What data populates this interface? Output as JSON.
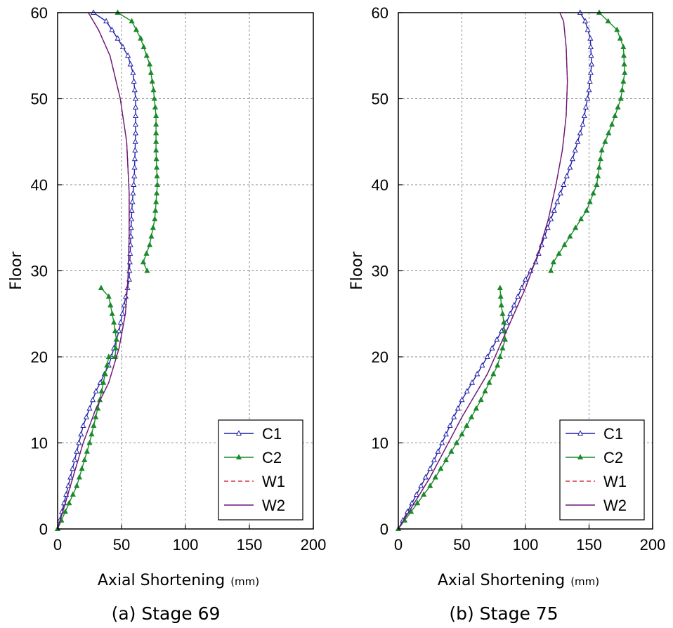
{
  "chart_data": [
    {
      "type": "line",
      "caption": "(a) Stage 69",
      "xlabel": "Axial Shortening",
      "xunit": "(mm)",
      "ylabel": "Floor",
      "xlim": [
        0,
        200
      ],
      "ylim": [
        0,
        60
      ],
      "xticks": [
        0,
        50,
        100,
        150,
        200
      ],
      "yticks": [
        0,
        10,
        20,
        30,
        40,
        50,
        60
      ],
      "grid": true,
      "legend": "bottom-right",
      "series": [
        {
          "name": "C1",
          "color": "#1f1fa8",
          "marker": "open-triangle",
          "dash": "",
          "x": [
            0,
            10,
            20,
            30,
            40,
            48,
            52,
            56,
            57,
            58,
            60,
            61,
            61,
            59,
            55,
            47,
            38,
            28
          ],
          "y": [
            0,
            6,
            12,
            16,
            19,
            23,
            26,
            29,
            33,
            37,
            41,
            46,
            50,
            53,
            55,
            57,
            59,
            60
          ]
        },
        {
          "name": "C2",
          "color": "#1a8a2a",
          "marker": "filled-triangle",
          "dash": "",
          "x": [
            0,
            15,
            25,
            33,
            40,
            45,
            46,
            44,
            40,
            34
          ],
          "y": [
            0,
            5,
            10,
            15,
            20,
            20,
            22,
            24,
            27,
            28
          ]
        },
        {
          "name": "C2",
          "color": "#1a8a2a",
          "marker": "filled-triangle",
          "dash": "",
          "x": [
            70,
            67,
            72,
            76,
            78,
            77,
            77,
            75,
            72,
            65,
            58,
            47
          ],
          "y": [
            30,
            31,
            33,
            36,
            40,
            44,
            48,
            51,
            54,
            57,
            59,
            60
          ]
        },
        {
          "name": "W1",
          "color": "#d9334a",
          "marker": "none",
          "dash": "6 4",
          "x": [
            0,
            10,
            20,
            30,
            40,
            48,
            53,
            55,
            56,
            56,
            54,
            49,
            41,
            32,
            24
          ],
          "y": [
            0,
            5,
            10,
            14,
            17,
            21,
            25,
            29,
            34,
            39,
            45,
            50,
            55,
            58,
            60
          ]
        },
        {
          "name": "W2",
          "color": "#6a1a7a",
          "marker": "none",
          "dash": "",
          "x": [
            0,
            10,
            20,
            30,
            40,
            48,
            53,
            55,
            56,
            56,
            54,
            49,
            41,
            32,
            24
          ],
          "y": [
            0,
            5,
            10,
            14,
            17,
            21,
            25,
            29,
            34,
            39,
            45,
            50,
            55,
            58,
            60
          ]
        }
      ],
      "legend_entries": [
        {
          "name": "C1",
          "color": "#1f1fa8",
          "marker": "open-triangle",
          "dash": ""
        },
        {
          "name": "C2",
          "color": "#1a8a2a",
          "marker": "filled-triangle",
          "dash": ""
        },
        {
          "name": "W1",
          "color": "#d9334a",
          "marker": "none",
          "dash": "6 4"
        },
        {
          "name": "W2",
          "color": "#6a1a7a",
          "marker": "none",
          "dash": ""
        }
      ]
    },
    {
      "type": "line",
      "caption": "(b) Stage 75",
      "xlabel": "Axial Shortening",
      "xunit": "(mm)",
      "ylabel": "Floor",
      "xlim": [
        0,
        200
      ],
      "ylim": [
        0,
        60
      ],
      "xticks": [
        0,
        50,
        100,
        150,
        200
      ],
      "yticks": [
        0,
        10,
        20,
        30,
        40,
        50,
        60
      ],
      "grid": true,
      "legend": "bottom-right",
      "series": [
        {
          "name": "C1",
          "color": "#1f1fa8",
          "marker": "open-triangle",
          "dash": "",
          "x": [
            0,
            25,
            50,
            70,
            85,
            100,
            108,
            115,
            125,
            135,
            145,
            150,
            152,
            151,
            147,
            143
          ],
          "y": [
            0,
            7,
            15,
            20,
            24,
            29,
            31,
            34,
            38,
            42,
            47,
            51,
            54,
            57,
            59,
            60
          ]
        },
        {
          "name": "C2",
          "color": "#1a8a2a",
          "marker": "filled-triangle",
          "dash": "",
          "x": [
            0,
            25,
            50,
            65,
            78,
            84,
            83,
            81,
            80
          ],
          "y": [
            0,
            5,
            11,
            15,
            19,
            22,
            24,
            26,
            28
          ]
        },
        {
          "name": "C2",
          "color": "#1a8a2a",
          "marker": "filled-triangle",
          "dash": "",
          "x": [
            120,
            122,
            135,
            148,
            156,
            160,
            168,
            175,
            178,
            177,
            172,
            165,
            158
          ],
          "y": [
            30,
            31,
            34,
            37,
            40,
            44,
            47,
            50,
            53,
            56,
            58,
            59,
            60
          ]
        },
        {
          "name": "W1",
          "color": "#d9334a",
          "marker": "none",
          "dash": "6 4",
          "x": [
            0,
            25,
            50,
            70,
            85,
            100,
            110,
            118,
            124,
            129,
            132,
            133,
            132,
            130,
            127
          ],
          "y": [
            0,
            6,
            13,
            18,
            23,
            28,
            32,
            36,
            40,
            44,
            48,
            52,
            56,
            59,
            60
          ]
        },
        {
          "name": "W2",
          "color": "#6a1a7a",
          "marker": "none",
          "dash": "",
          "x": [
            0,
            25,
            50,
            70,
            85,
            100,
            110,
            118,
            124,
            129,
            132,
            133,
            132,
            130,
            127
          ],
          "y": [
            0,
            6,
            13,
            18,
            23,
            28,
            32,
            36,
            40,
            44,
            48,
            52,
            56,
            59,
            60
          ]
        }
      ],
      "legend_entries": [
        {
          "name": "C1",
          "color": "#1f1fa8",
          "marker": "open-triangle",
          "dash": ""
        },
        {
          "name": "C2",
          "color": "#1a8a2a",
          "marker": "filled-triangle",
          "dash": ""
        },
        {
          "name": "W1",
          "color": "#d9334a",
          "marker": "none",
          "dash": "6 4"
        },
        {
          "name": "W2",
          "color": "#6a1a7a",
          "marker": "none",
          "dash": ""
        }
      ]
    }
  ]
}
